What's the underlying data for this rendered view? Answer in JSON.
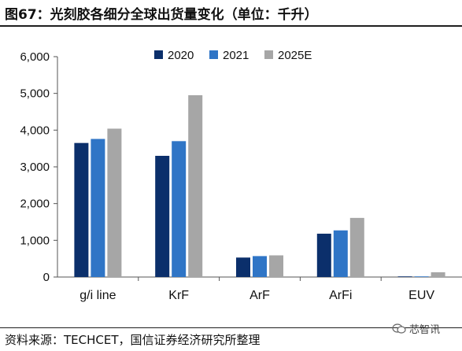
{
  "figure": {
    "title": "图67：光刻胶各细分全球出货量变化（单位：千升）",
    "source": "资料来源：TECHCET，国信证券经济研究所整理",
    "watermark": "芯智讯"
  },
  "chart_data": {
    "type": "bar",
    "categories": [
      "g/i line",
      "KrF",
      "ArF",
      "ArFi",
      "EUV"
    ],
    "series": [
      {
        "name": "2020",
        "color": "#0b2f6b",
        "values": [
          3650,
          3300,
          530,
          1180,
          5
        ]
      },
      {
        "name": "2021",
        "color": "#2f75c6",
        "values": [
          3760,
          3700,
          570,
          1270,
          15
        ]
      },
      {
        "name": "2025E",
        "color": "#a6a6a6",
        "values": [
          4040,
          4950,
          590,
          1610,
          130
        ]
      }
    ],
    "yticks": [
      0,
      1000,
      2000,
      3000,
      4000,
      5000,
      6000
    ],
    "ytick_labels": [
      "0",
      "1,000",
      "2,000",
      "3,000",
      "4,000",
      "5,000",
      "6,000"
    ],
    "ylim": [
      0,
      6000
    ],
    "legend_position": "top-center",
    "grid": false
  }
}
